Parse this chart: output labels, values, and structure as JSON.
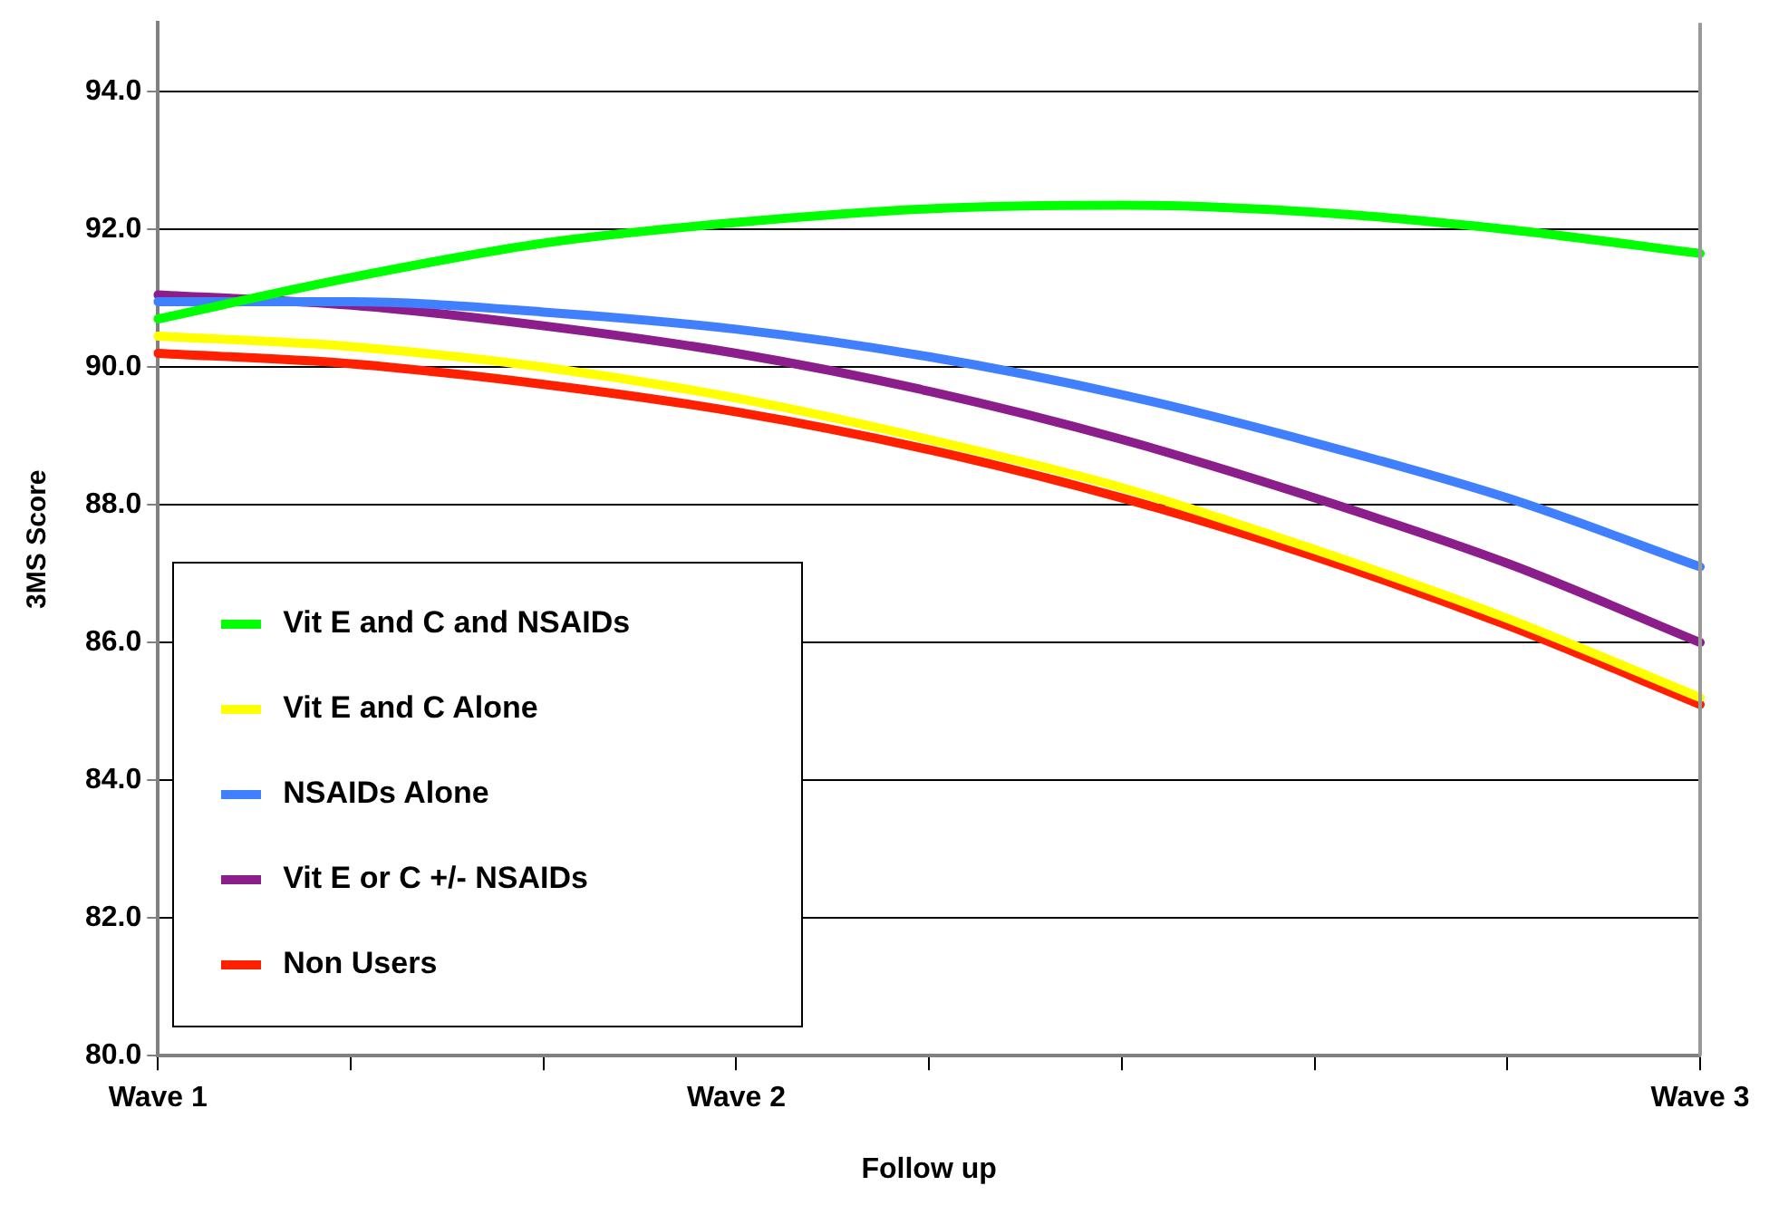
{
  "chart_data": {
    "type": "line",
    "xlabel": "Follow up",
    "ylabel": "3MS Score",
    "categories": [
      "Wave 1",
      null,
      null,
      "Wave 2",
      null,
      null,
      null,
      null,
      "Wave 3"
    ],
    "series": [
      {
        "name": "Vit E and C and NSAIDs",
        "color": "#00ff00",
        "values": [
          90.7,
          91.3,
          91.8,
          92.1,
          92.3,
          92.35,
          92.25,
          92.0,
          91.65
        ]
      },
      {
        "name": "Vit E and C Alone",
        "color": "#ffff00",
        "values": [
          90.45,
          90.3,
          90.0,
          89.55,
          88.95,
          88.25,
          87.35,
          86.35,
          85.2
        ]
      },
      {
        "name": "NSAIDs Alone",
        "color": "#4080ff",
        "values": [
          90.95,
          90.95,
          90.8,
          90.55,
          90.15,
          89.6,
          88.9,
          88.1,
          87.1
        ]
      },
      {
        "name": "Vit E or C +/- NSAIDs",
        "color": "#8b1e8b",
        "values": [
          91.05,
          90.9,
          90.6,
          90.2,
          89.65,
          88.95,
          88.1,
          87.15,
          86.0
        ]
      },
      {
        "name": "Non Users",
        "color": "#ff2000",
        "values": [
          90.2,
          90.05,
          89.75,
          89.35,
          88.8,
          88.1,
          87.25,
          86.25,
          85.1
        ]
      }
    ],
    "ylim": [
      80,
      95
    ],
    "yticks": [
      {
        "value": 80,
        "label": "80.0"
      },
      {
        "value": 82,
        "label": "82.0"
      },
      {
        "value": 84,
        "label": "84.0"
      },
      {
        "value": 86,
        "label": "86.0"
      },
      {
        "value": 88,
        "label": "88.0"
      },
      {
        "value": 90,
        "label": "90.0"
      },
      {
        "value": 92,
        "label": "92.0"
      },
      {
        "value": 94,
        "label": "94.0"
      }
    ],
    "grid": "y",
    "legend": "bottom left",
    "marker": "none",
    "line_style": "solid"
  }
}
